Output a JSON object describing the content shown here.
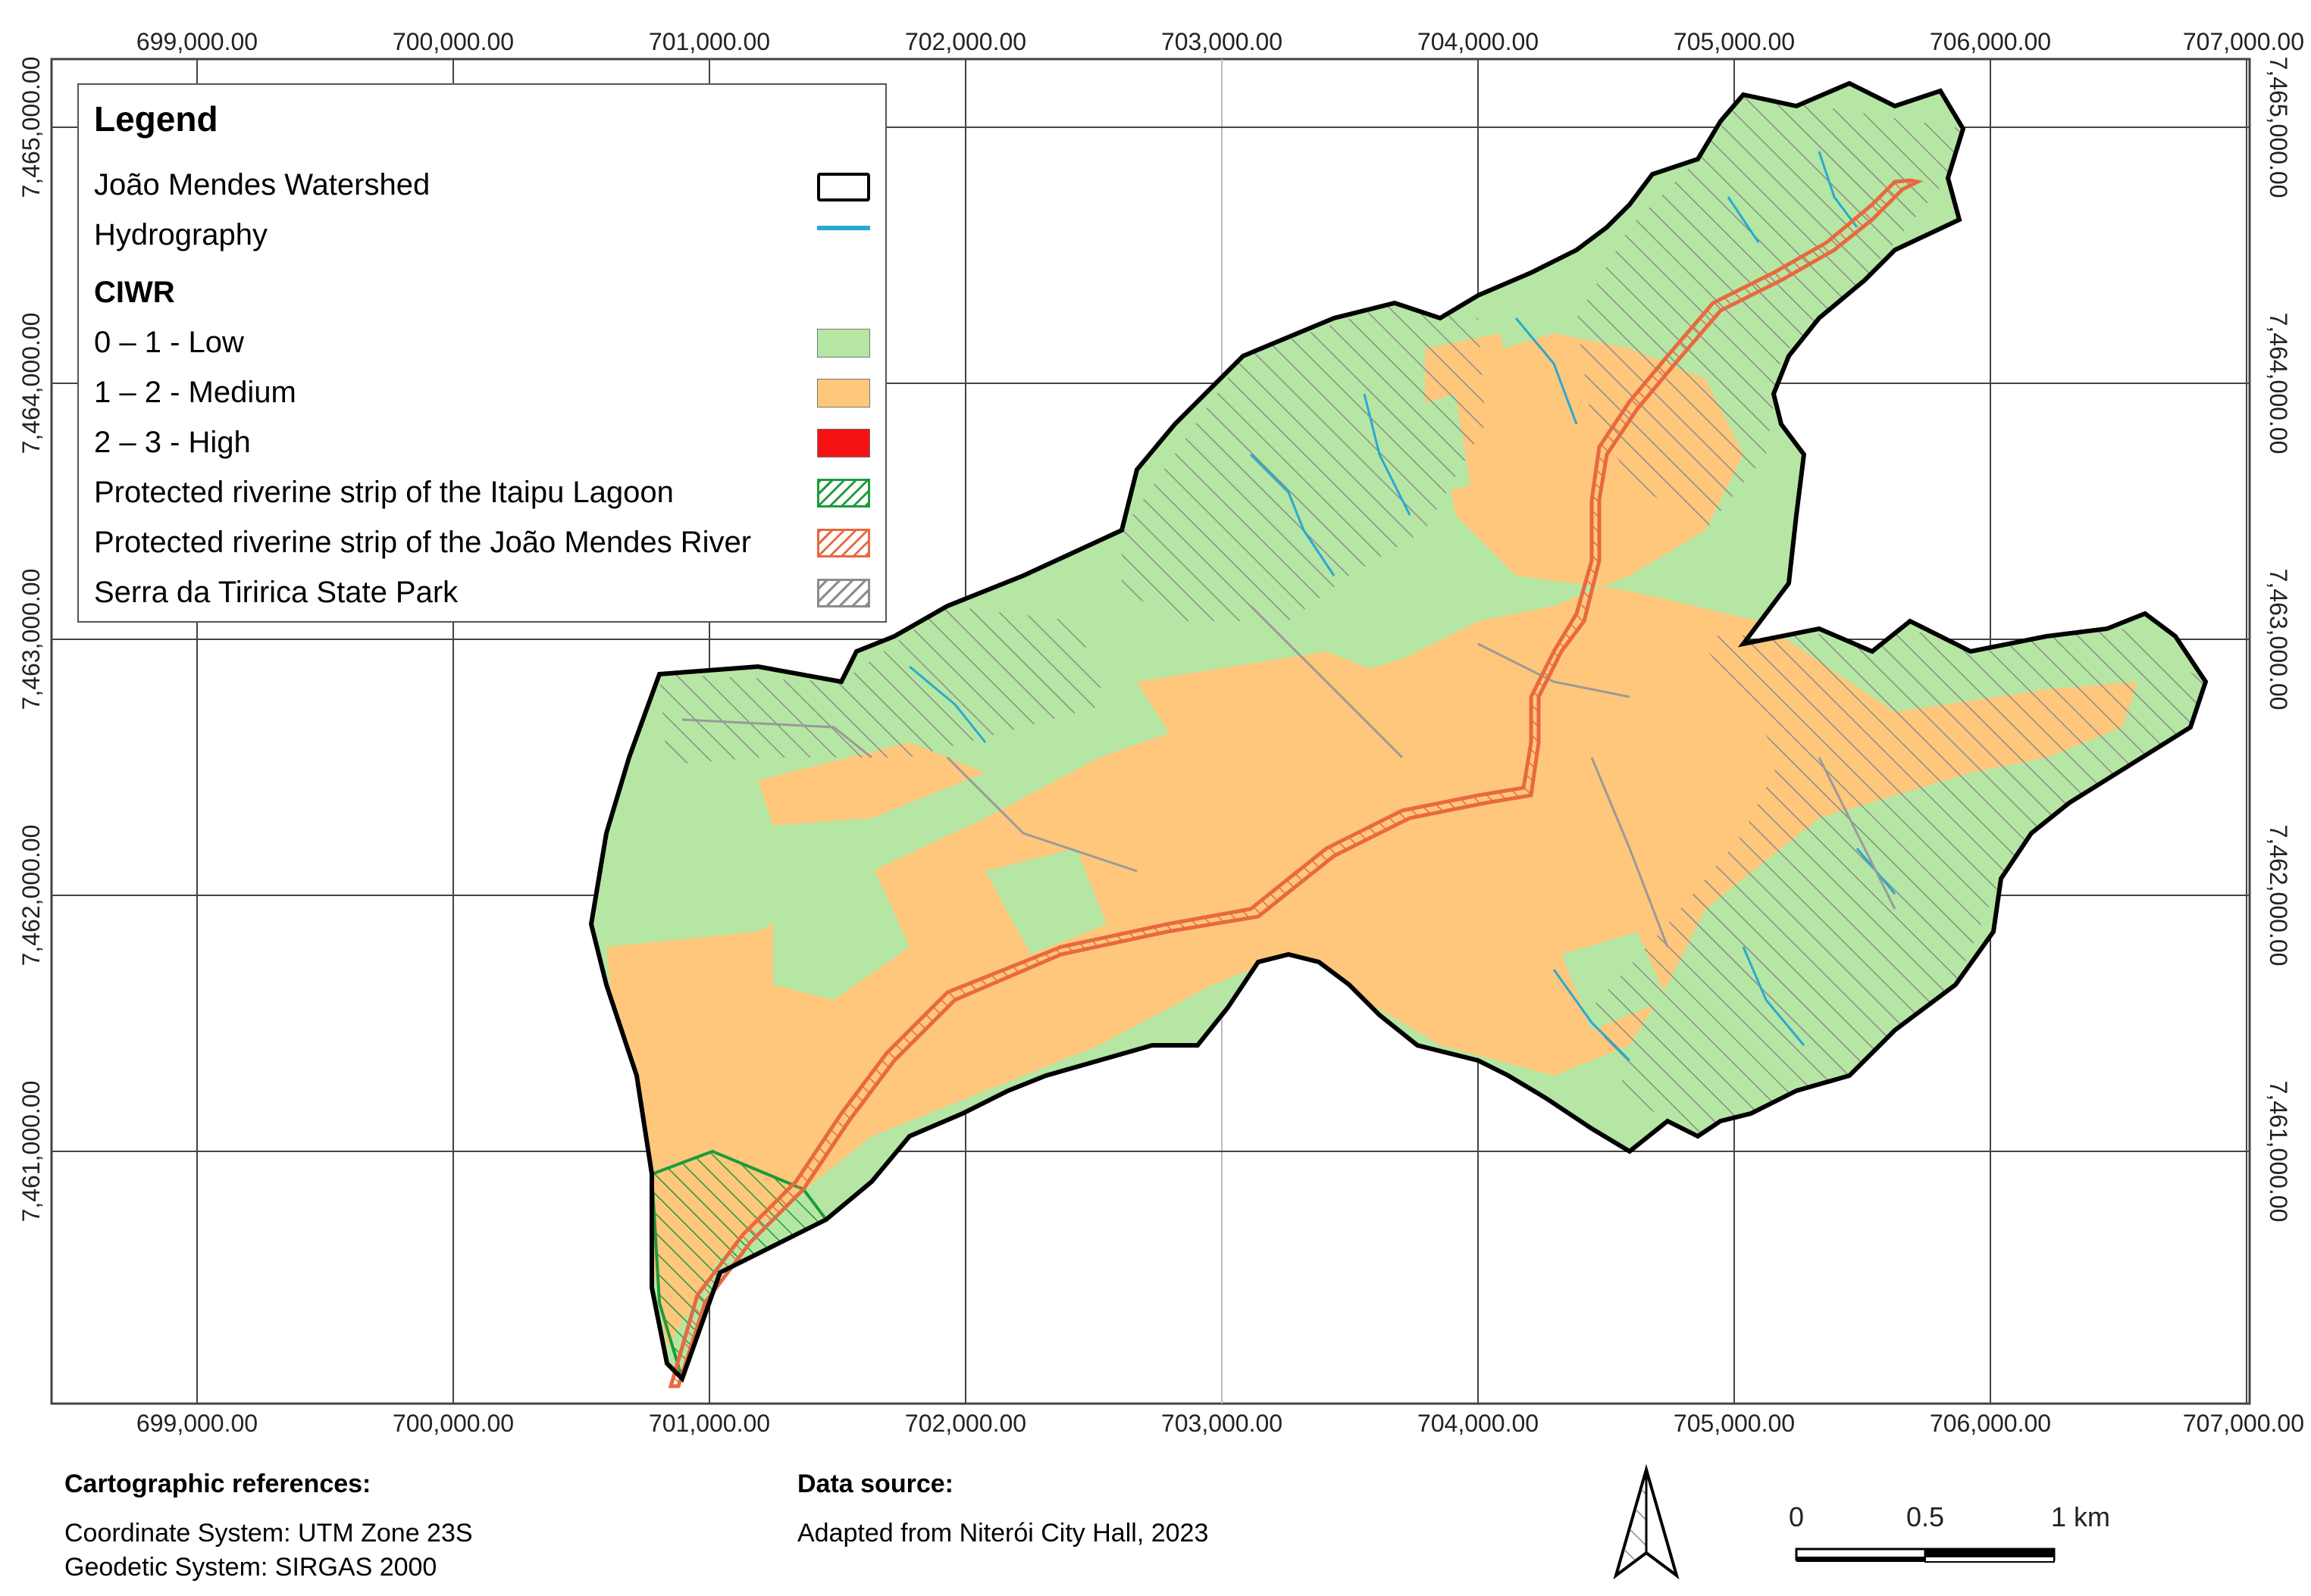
{
  "map": {
    "x_ticks": [
      "699,000.00",
      "700,000.00",
      "701,000.00",
      "702,000.00",
      "703,000.00",
      "704,000.00",
      "705,000.00",
      "706,000.00",
      "707,000.00"
    ],
    "y_ticks": [
      "7,465,000.00",
      "7,464,000.00",
      "7,463,000.00",
      "7,462,000.00",
      "7,461,000.00"
    ],
    "colors": {
      "low": "#b6e6a4",
      "medium": "#fec77c",
      "high": "#f41111",
      "hydrography": "#2aa9d0",
      "watershed_outline": "#000000",
      "itaipu_strip": "#1d9a3c",
      "joao_mendes_strip": "#e8693f",
      "park_hatch": "#8c8c8c",
      "grid": "#444444"
    }
  },
  "legend": {
    "title": "Legend",
    "items": [
      {
        "label": "João Mendes Watershed",
        "icon": "outline-box"
      },
      {
        "label": "Hydrography",
        "icon": "line"
      }
    ],
    "section_title": "CIWR",
    "classes": [
      {
        "label": "0 – 1 - Low",
        "color": "#b6e6a4"
      },
      {
        "label": "1 – 2 - Medium",
        "color": "#fec77c"
      },
      {
        "label": "2 – 3 - High",
        "color": "#f41111"
      }
    ],
    "protected": [
      {
        "label": "Protected riverine strip of the Itaipu Lagoon",
        "color": "#1d9a3c"
      },
      {
        "label": "Protected riverine strip of the João Mendes River",
        "color": "#e8693f"
      },
      {
        "label": "Serra da Tiririca State Park",
        "color": "#8c8c8c"
      }
    ]
  },
  "footer": {
    "cartographic_title": "Cartographic references:",
    "coordinate_system": "Coordinate System: UTM Zone 23S",
    "geodetic_system": "Geodetic System: SIRGAS 2000",
    "data_source_title": "Data source:",
    "data_source": "Adapted from Niterói City Hall, 2023",
    "scale_labels": [
      "0",
      "0.5",
      "1 km"
    ],
    "north_arrow": "north-arrow-icon"
  }
}
